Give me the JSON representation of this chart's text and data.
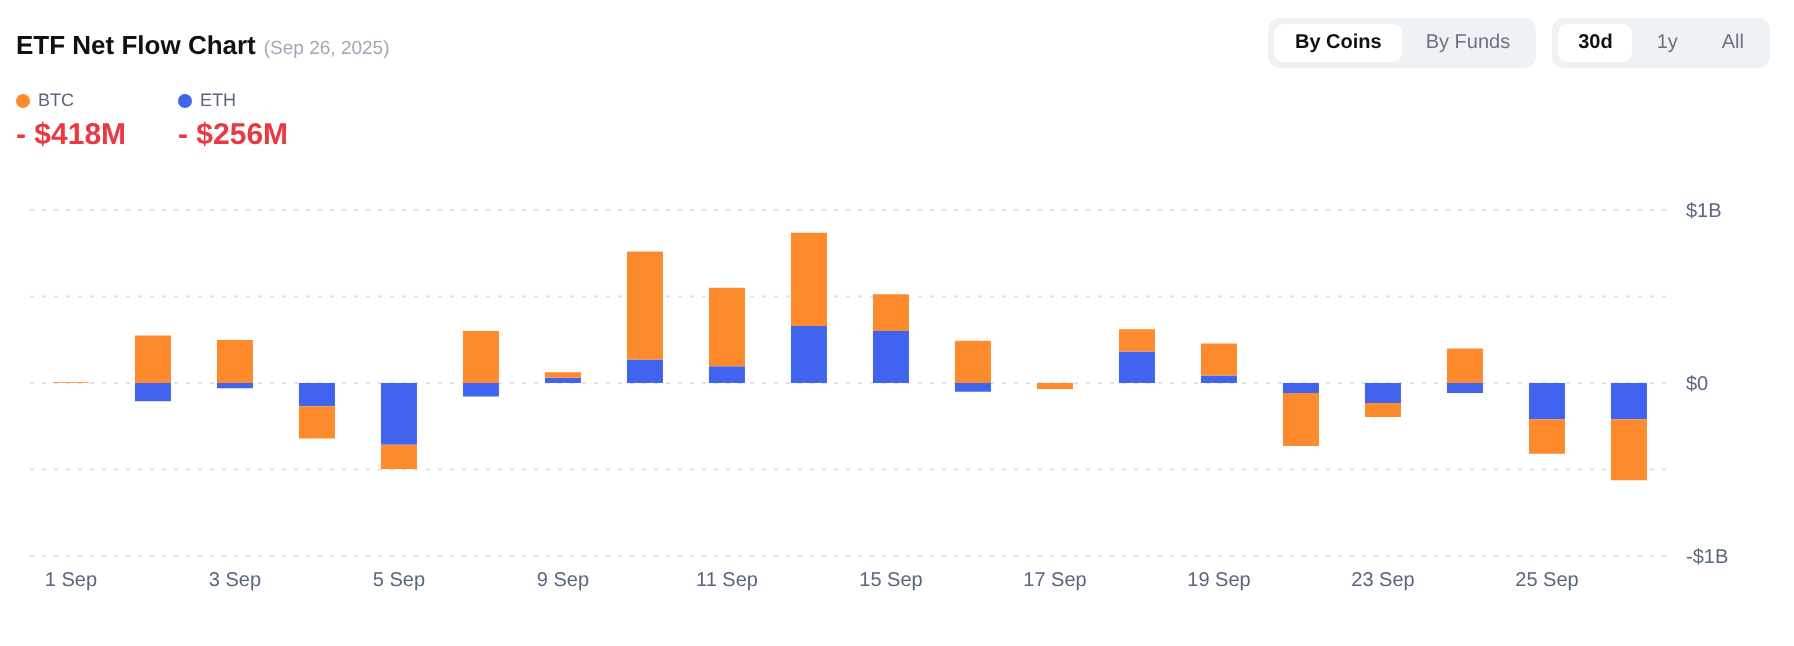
{
  "chart_data": {
    "type": "bar",
    "title": "ETF Net Flow Chart",
    "subtitle": "(Sep 26, 2025)",
    "categories": [
      "1 Sep",
      null,
      "3 Sep",
      null,
      "5 Sep",
      null,
      "9 Sep",
      null,
      "11 Sep",
      null,
      "15 Sep",
      null,
      "17 Sep",
      null,
      "19 Sep",
      null,
      "23 Sep",
      null,
      "25 Sep",
      null
    ],
    "series": [
      {
        "name": "ETH",
        "color": "#4064ee",
        "values": [
          0,
          -0.105,
          -0.03,
          -0.135,
          -0.357,
          -0.078,
          0.031,
          0.136,
          0.097,
          0.33,
          0.3,
          -0.05,
          0,
          0.182,
          0.043,
          -0.058,
          -0.116,
          -0.058,
          -0.209,
          -0.209
        ]
      },
      {
        "name": "BTC",
        "color": "#fe8a2e",
        "values": [
          0.005,
          0.275,
          0.248,
          -0.186,
          -0.14,
          0.3,
          0.031,
          0.624,
          0.453,
          0.539,
          0.213,
          0.244,
          -0.035,
          0.128,
          0.186,
          -0.306,
          -0.081,
          0.2,
          -0.2,
          -0.353
        ]
      }
    ],
    "stacked": true,
    "ylim": [
      -1,
      1
    ],
    "yticks": [
      {
        "value": -1,
        "label": "-$1B"
      },
      {
        "value": -0.5,
        "label": null
      },
      {
        "value": 0,
        "label": "$0"
      },
      {
        "value": 0.5,
        "label": null
      },
      {
        "value": 1,
        "label": "$1B"
      }
    ],
    "grid": "y",
    "legend": "top left",
    "annotations": [
      "- $418M",
      "- $256M",
      "By Coins",
      "By Funds",
      "30d",
      "1y",
      "All"
    ]
  }
}
